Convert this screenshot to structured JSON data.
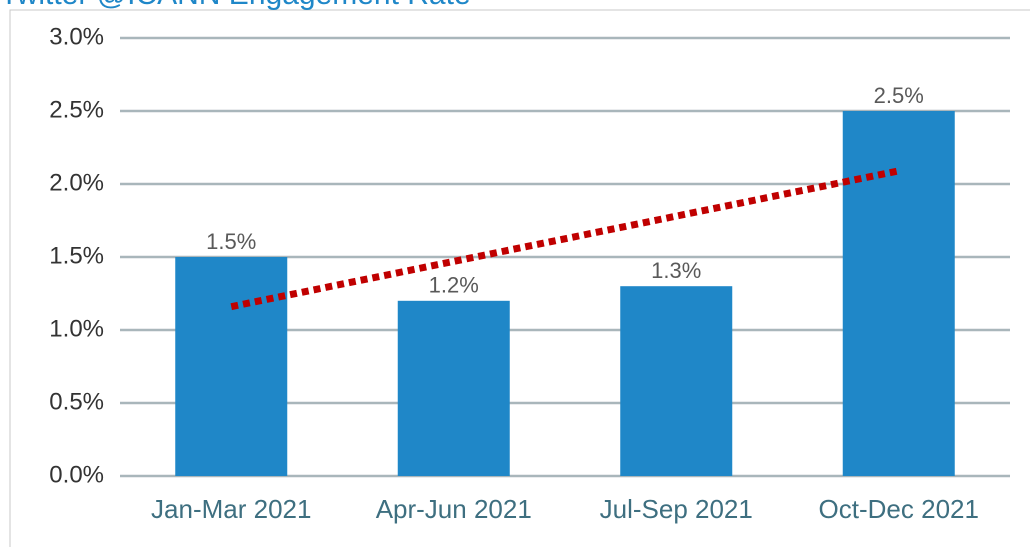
{
  "chart_data": {
    "type": "bar",
    "title": "Twitter @ICANN Engagement Rate",
    "categories": [
      "Jan-Mar 2021",
      "Apr-Jun 2021",
      "Jul-Sep 2021",
      "Oct-Dec 2021"
    ],
    "values": [
      1.5,
      1.2,
      1.3,
      2.5
    ],
    "value_labels": [
      "1.5%",
      "1.2%",
      "1.3%",
      "2.5%"
    ],
    "color": "#1f87c8",
    "ylim": [
      0,
      3
    ],
    "yticks": [
      {
        "value": 0,
        "label": "0.0%"
      },
      {
        "value": 0.5,
        "label": "0.5%"
      },
      {
        "value": 1,
        "label": "1.0%"
      },
      {
        "value": 1.5,
        "label": "1.5%"
      },
      {
        "value": 2,
        "label": "2.0%"
      },
      {
        "value": 2.5,
        "label": "2.5%"
      },
      {
        "value": 3,
        "label": "3.0%"
      }
    ],
    "grid": true,
    "trendline": {
      "type": "linear",
      "color": "#c00000"
    }
  }
}
